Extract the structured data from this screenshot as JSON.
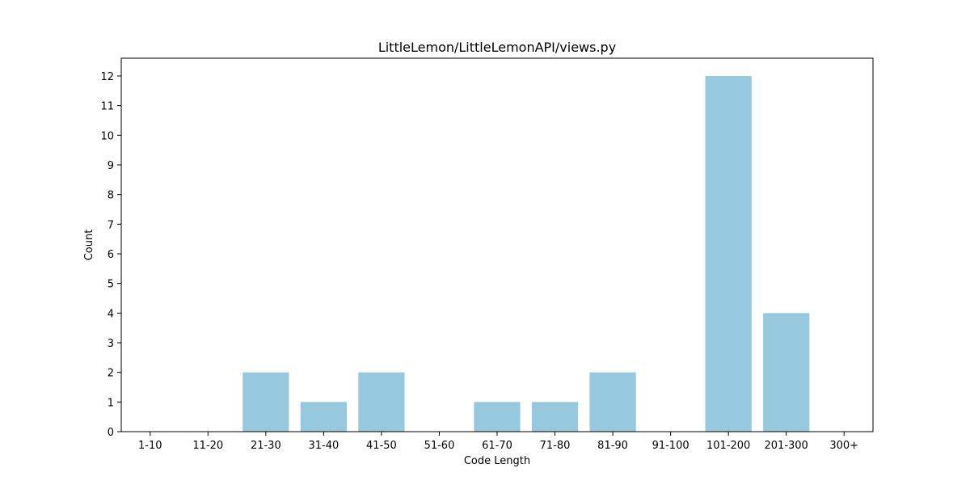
{
  "chart_data": {
    "type": "bar",
    "title": "LittleLemon/LittleLemonAPI/views.py",
    "xlabel": "Code Length",
    "ylabel": "Count",
    "categories": [
      "1-10",
      "11-20",
      "21-30",
      "31-40",
      "41-50",
      "51-60",
      "61-70",
      "71-80",
      "81-90",
      "91-100",
      "101-200",
      "201-300",
      "300+"
    ],
    "values": [
      0,
      0,
      2,
      1,
      2,
      0,
      1,
      1,
      2,
      0,
      12,
      4,
      0
    ],
    "ylim": [
      0,
      12.6
    ],
    "yticks": [
      0,
      1,
      2,
      3,
      4,
      5,
      6,
      7,
      8,
      9,
      10,
      11,
      12
    ],
    "grid": false,
    "legend": "none",
    "bar_color": "#96c9dd"
  }
}
